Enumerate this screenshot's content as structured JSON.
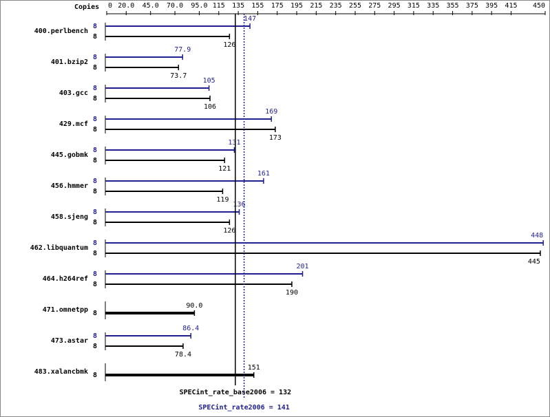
{
  "chart_data": {
    "type": "bar",
    "orientation": "horizontal",
    "x_label": "Copies",
    "categories": [
      "400.perlbench",
      "401.bzip2",
      "403.gcc",
      "429.mcf",
      "445.gobmk",
      "456.hmmer",
      "458.sjeng",
      "462.libquantum",
      "464.h264ref",
      "471.omnetpp",
      "473.astar",
      "483.xalancbmk"
    ],
    "series": [
      {
        "color": "#1f1f8f",
        "values": [
          147,
          77.9,
          105,
          169,
          131,
          161,
          136,
          448,
          201,
          null,
          86.4,
          null
        ],
        "value_labels": [
          "147",
          "77.9",
          "105",
          "169",
          "131",
          "161",
          "136",
          "448",
          "201",
          null,
          "86.4",
          null
        ],
        "copies": [
          8,
          8,
          8,
          8,
          8,
          8,
          8,
          8,
          8,
          null,
          8,
          null
        ]
      },
      {
        "color": "#000000",
        "values": [
          126,
          73.7,
          106,
          173,
          121,
          119,
          126,
          445,
          190,
          90,
          78.4,
          151
        ],
        "value_labels": [
          "126",
          "73.7",
          "106",
          "173",
          "121",
          "119",
          "126",
          "445",
          "190",
          "90.0",
          "78.4",
          "151"
        ],
        "copies": [
          8,
          8,
          8,
          8,
          8,
          8,
          8,
          8,
          8,
          8,
          8,
          8
        ]
      }
    ],
    "xlim": [
      0,
      450
    ],
    "xticks": [
      0,
      {
        "value": 20,
        "label": "20.0"
      },
      {
        "value": 45,
        "label": "45.0"
      },
      {
        "value": 70,
        "label": "70.0"
      },
      {
        "value": 95,
        "label": "95.0"
      },
      115,
      135,
      155,
      175,
      195,
      215,
      235,
      255,
      275,
      295,
      315,
      335,
      355,
      375,
      395,
      415,
      450
    ],
    "reference_lines": [
      {
        "label": "SPECint_rate_base2006 = 132",
        "value": 132,
        "color": "#000000",
        "dashed": false
      },
      {
        "label": "SPECint_rate2006 = 141",
        "value": 141,
        "color": "#1f1f8f",
        "dashed": true
      }
    ]
  }
}
